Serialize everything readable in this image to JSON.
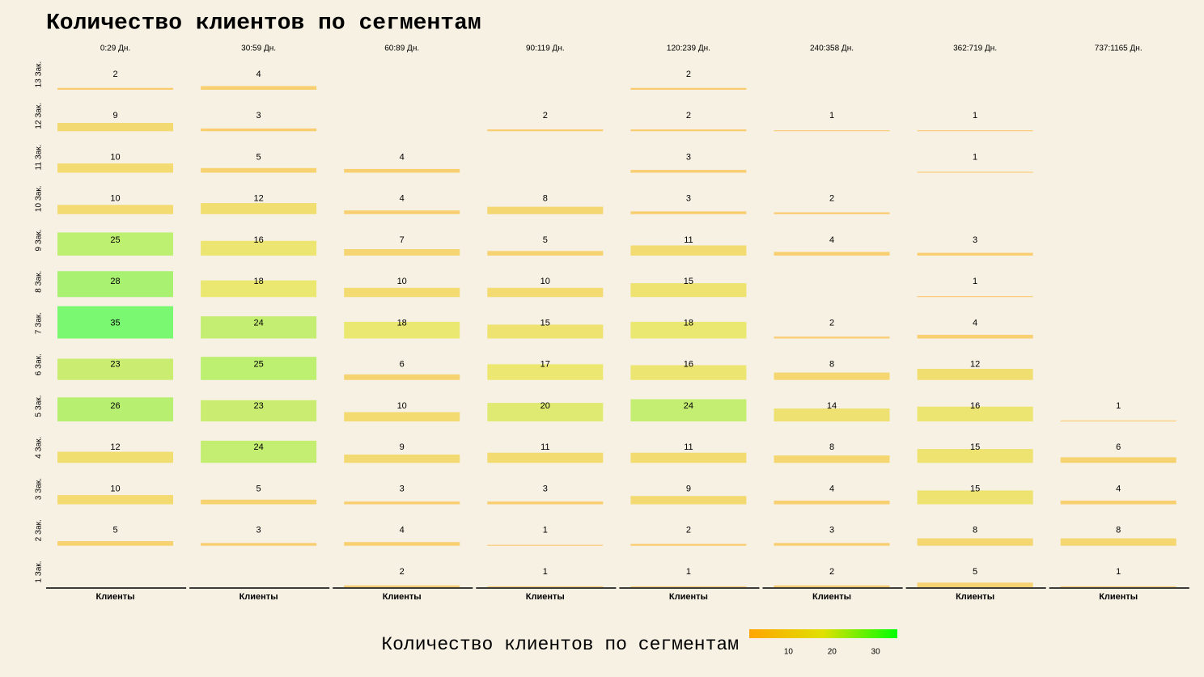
{
  "chart_data": {
    "type": "bar",
    "title": "Количество клиентов по сегментам",
    "columns": [
      "0:29 Дн.",
      "30:59 Дн.",
      "60:89 Дн.",
      "90:119 Дн.",
      "120:239 Дн.",
      "240:358 Дн.",
      "362:719 Дн.",
      "737:1165 Дн."
    ],
    "rows": [
      "13 Зак.",
      "12 Зак.",
      "11 Зак.",
      "10 Зак.",
      "9 Зак.",
      "8 Зак.",
      "7 Зак.",
      "6 Зак.",
      "5 Зак.",
      "4 Зак.",
      "3 Зак.",
      "2 Зак.",
      "1 Зак."
    ],
    "x_label": "Клиенты",
    "ylim": [
      0,
      35
    ],
    "values": [
      [
        2,
        9,
        10,
        10,
        25,
        28,
        35,
        23,
        26,
        12,
        10,
        5,
        null
      ],
      [
        4,
        3,
        5,
        12,
        16,
        18,
        24,
        25,
        23,
        24,
        5,
        3,
        null
      ],
      [
        null,
        null,
        4,
        4,
        7,
        10,
        18,
        6,
        10,
        9,
        3,
        4,
        2
      ],
      [
        null,
        2,
        null,
        8,
        5,
        10,
        15,
        17,
        20,
        11,
        3,
        1,
        1
      ],
      [
        2,
        2,
        3,
        3,
        11,
        15,
        18,
        16,
        24,
        11,
        9,
        2,
        1
      ],
      [
        null,
        1,
        null,
        2,
        4,
        null,
        2,
        8,
        14,
        8,
        4,
        3,
        2
      ],
      [
        null,
        1,
        1,
        null,
        3,
        1,
        4,
        12,
        16,
        15,
        15,
        8,
        5
      ],
      [
        null,
        null,
        null,
        null,
        null,
        null,
        null,
        null,
        1,
        6,
        4,
        8,
        1
      ]
    ],
    "legend": {
      "title": "Количество клиентов по сегментам",
      "lim": [
        1,
        35
      ],
      "ticks": [
        10,
        20,
        30
      ],
      "colors": [
        "#ffa500",
        "#e0e000",
        "#00ff00"
      ]
    }
  }
}
